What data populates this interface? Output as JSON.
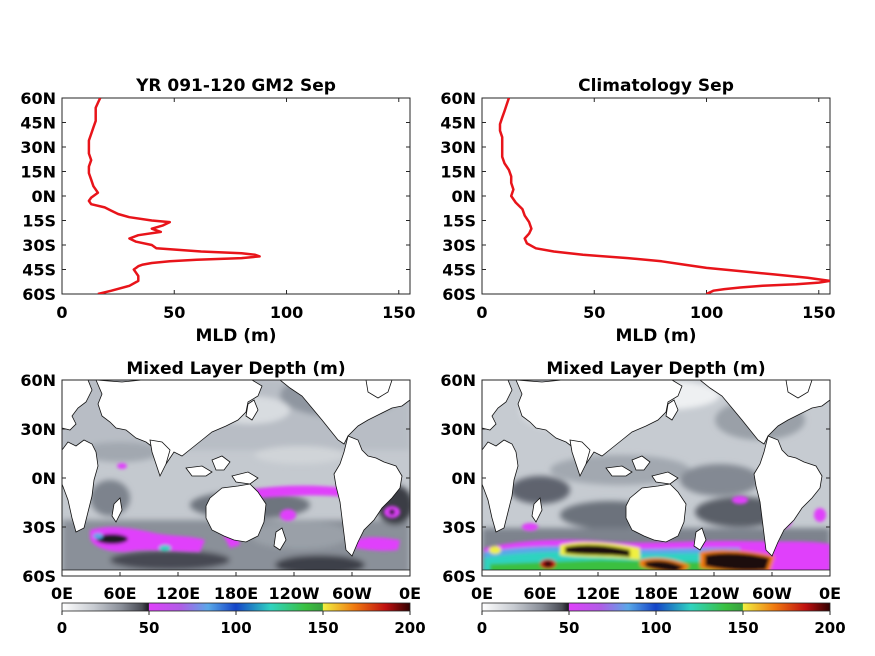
{
  "chart_data": [
    {
      "type": "line",
      "title": "YR 091-120 GM2 Sep",
      "xlabel": "MLD (m)",
      "ylabel": "",
      "xlim": [
        0,
        155
      ],
      "xticks": [
        "0",
        "50",
        "100",
        "150"
      ],
      "yticks": [
        "60N",
        "45N",
        "30N",
        "15N",
        "0N",
        "15S",
        "30S",
        "45S",
        "60S"
      ],
      "ylim": [
        -60,
        60
      ],
      "line_color": "#e8141a",
      "series": [
        {
          "lat": [
            60,
            57,
            54,
            50,
            46,
            42,
            38,
            34,
            30,
            26,
            22,
            18,
            14,
            10,
            6,
            2,
            -1,
            -3,
            -5,
            -7,
            -9,
            -11,
            -13,
            -15,
            -16,
            -18,
            -20,
            -22,
            -24,
            -26,
            -28,
            -30,
            -32,
            -34,
            -35,
            -36,
            -37,
            -38,
            -39,
            -40,
            -41,
            -42,
            -43,
            -44,
            -45,
            -47,
            -49,
            -52,
            -55,
            -58,
            -60
          ],
          "mld": [
            17,
            16,
            15,
            15,
            15,
            14,
            13,
            12,
            12,
            12,
            13,
            12,
            12,
            13,
            14,
            16,
            13,
            12,
            13,
            19,
            22,
            25,
            30,
            40,
            48,
            45,
            40,
            44,
            34,
            30,
            33,
            40,
            42,
            62,
            80,
            86,
            88,
            80,
            60,
            48,
            40,
            36,
            34,
            33,
            32,
            33,
            34,
            34,
            30,
            22,
            16
          ]
        }
      ]
    },
    {
      "type": "line",
      "title": "Climatology Sep",
      "xlabel": "MLD (m)",
      "ylabel": "",
      "xlim": [
        0,
        155
      ],
      "xticks": [
        "0",
        "50",
        "100",
        "150"
      ],
      "yticks": [
        "60N",
        "45N",
        "30N",
        "15N",
        "0N",
        "15S",
        "30S",
        "45S",
        "60S"
      ],
      "ylim": [
        -60,
        60
      ],
      "line_color": "#e8141a",
      "series": [
        {
          "lat": [
            60,
            56,
            52,
            48,
            44,
            40,
            36,
            32,
            28,
            24,
            20,
            16,
            12,
            8,
            4,
            0,
            -4,
            -8,
            -12,
            -16,
            -20,
            -23,
            -26,
            -29,
            -32,
            -34,
            -36,
            -38,
            -40,
            -42,
            -44,
            -46,
            -48,
            -50,
            -52,
            -53,
            -54,
            -55,
            -56,
            -57,
            -58,
            -60
          ],
          "mld": [
            12,
            11,
            10,
            9,
            8,
            8,
            9,
            9,
            9,
            9,
            10,
            12,
            13,
            13,
            14,
            13,
            15,
            18,
            19,
            21,
            22,
            21,
            19,
            20,
            24,
            32,
            45,
            65,
            80,
            90,
            100,
            115,
            130,
            145,
            155,
            150,
            140,
            125,
            115,
            108,
            103,
            100
          ]
        }
      ]
    },
    {
      "type": "heatmap",
      "title": "Mixed Layer Depth (m)",
      "xticks": [
        "0E",
        "60E",
        "120E",
        "180E",
        "120W",
        "60W",
        "0E"
      ],
      "yticks": [
        "60N",
        "30N",
        "0N",
        "30S",
        "60S"
      ],
      "colorbar": {
        "ticks": [
          "0",
          "50",
          "100",
          "150",
          "200"
        ],
        "range": [
          0,
          200
        ]
      }
    },
    {
      "type": "heatmap",
      "title": "Mixed Layer Depth (m)",
      "xticks": [
        "0E",
        "60E",
        "120E",
        "180E",
        "120W",
        "60W",
        "0E"
      ],
      "yticks": [
        "60N",
        "30N",
        "0N",
        "30S",
        "60S"
      ],
      "colorbar": {
        "ticks": [
          "0",
          "50",
          "100",
          "150",
          "200"
        ],
        "range": [
          0,
          200
        ]
      }
    }
  ],
  "colormap": [
    "#ffffff",
    "#c8ccd2",
    "#8a8f99",
    "#4a4c55",
    "#1a1a20",
    "#e040fb",
    "#b05ce6",
    "#5aa8e8",
    "#1545c8",
    "#2fd3c0",
    "#3ac040",
    "#f0f040",
    "#f07a10",
    "#c01010",
    "#300000"
  ]
}
